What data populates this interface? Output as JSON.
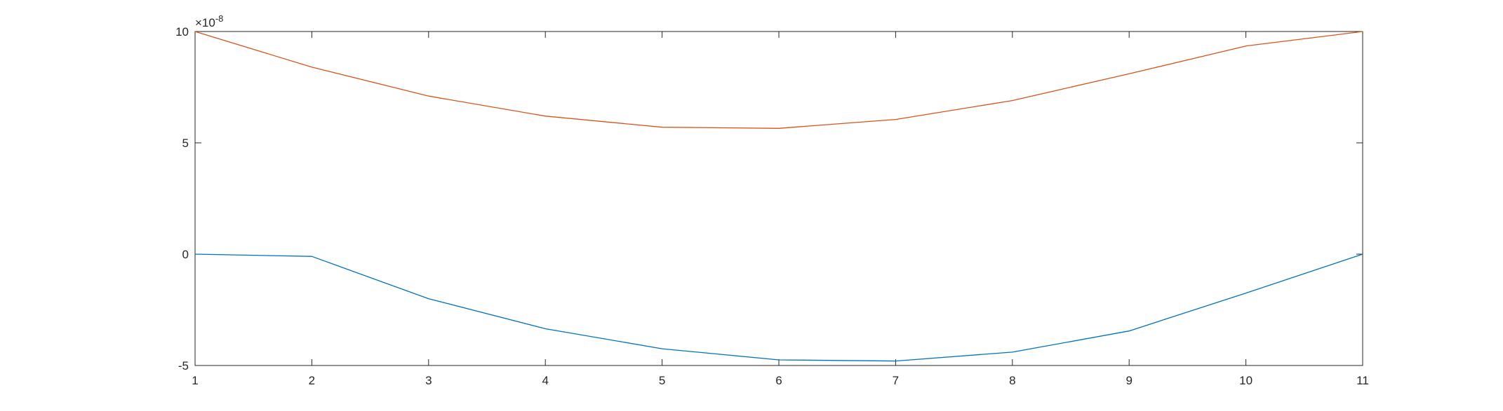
{
  "chart_data": {
    "type": "line",
    "title": "",
    "xlabel": "",
    "ylabel": "",
    "xlim": [
      1,
      11
    ],
    "ylim": [
      -5,
      10
    ],
    "y_exponent_label": {
      "base": "×10",
      "exponent": "-8"
    },
    "x_ticks": [
      1,
      2,
      3,
      4,
      5,
      6,
      7,
      8,
      9,
      10,
      11
    ],
    "x_tick_labels": [
      "1",
      "2",
      "3",
      "4",
      "5",
      "6",
      "7",
      "8",
      "9",
      "10",
      "11"
    ],
    "y_ticks": [
      -5,
      0,
      5,
      10
    ],
    "y_tick_labels": [
      "-5",
      "0",
      "5",
      "10"
    ],
    "grid": false,
    "box": true,
    "x": [
      1,
      2,
      3,
      4,
      5,
      6,
      7,
      8,
      9,
      10,
      11
    ],
    "series": [
      {
        "color": "#0072BD",
        "values": [
          0,
          -0.1,
          -2.0,
          -3.35,
          -4.25,
          -4.75,
          -4.8,
          -4.4,
          -3.45,
          -1.75,
          0
        ]
      },
      {
        "color": "#D95319",
        "values": [
          10,
          8.4,
          7.1,
          6.2,
          5.7,
          5.65,
          6.05,
          6.9,
          8.1,
          9.35,
          10
        ]
      }
    ]
  }
}
